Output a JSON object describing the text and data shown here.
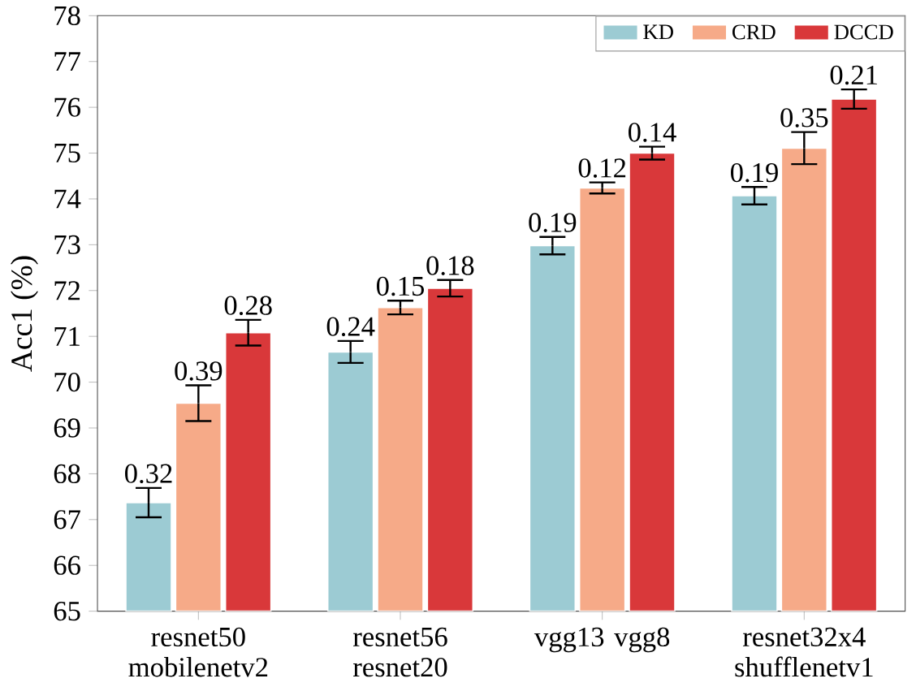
{
  "chart_data": {
    "type": "bar",
    "ylabel": "Acc1 (%)",
    "categories": [
      "resnet50 mobilenetv2",
      "resnet56 resnet20",
      "vgg13 vgg8",
      "resnet32x4 shufflenetv1"
    ],
    "series": [
      {
        "name": "KD",
        "color": "#9ccbd3",
        "values": [
          67.37,
          70.66,
          72.98,
          74.07
        ],
        "errors": [
          0.32,
          0.24,
          0.19,
          0.19
        ]
      },
      {
        "name": "CRD",
        "color": "#f6aa88",
        "values": [
          69.54,
          71.63,
          74.24,
          75.11
        ],
        "errors": [
          0.39,
          0.15,
          0.12,
          0.35
        ]
      },
      {
        "name": "DCCD",
        "color": "#d9383a",
        "values": [
          71.08,
          72.05,
          75.0,
          76.18
        ],
        "errors": [
          0.28,
          0.18,
          0.14,
          0.21
        ]
      }
    ],
    "annotations": [
      "0.32",
      "0.24",
      "0.19",
      "0.19",
      "0.39",
      "0.15",
      "0.12",
      "0.35",
      "0.28",
      "0.18",
      "0.14",
      "0.21"
    ],
    "ylim": [
      65,
      78
    ],
    "yticks": [
      65,
      66,
      67,
      68,
      69,
      70,
      71,
      72,
      73,
      74,
      75,
      76,
      77,
      78
    ],
    "legend": "top right",
    "grid": false
  }
}
